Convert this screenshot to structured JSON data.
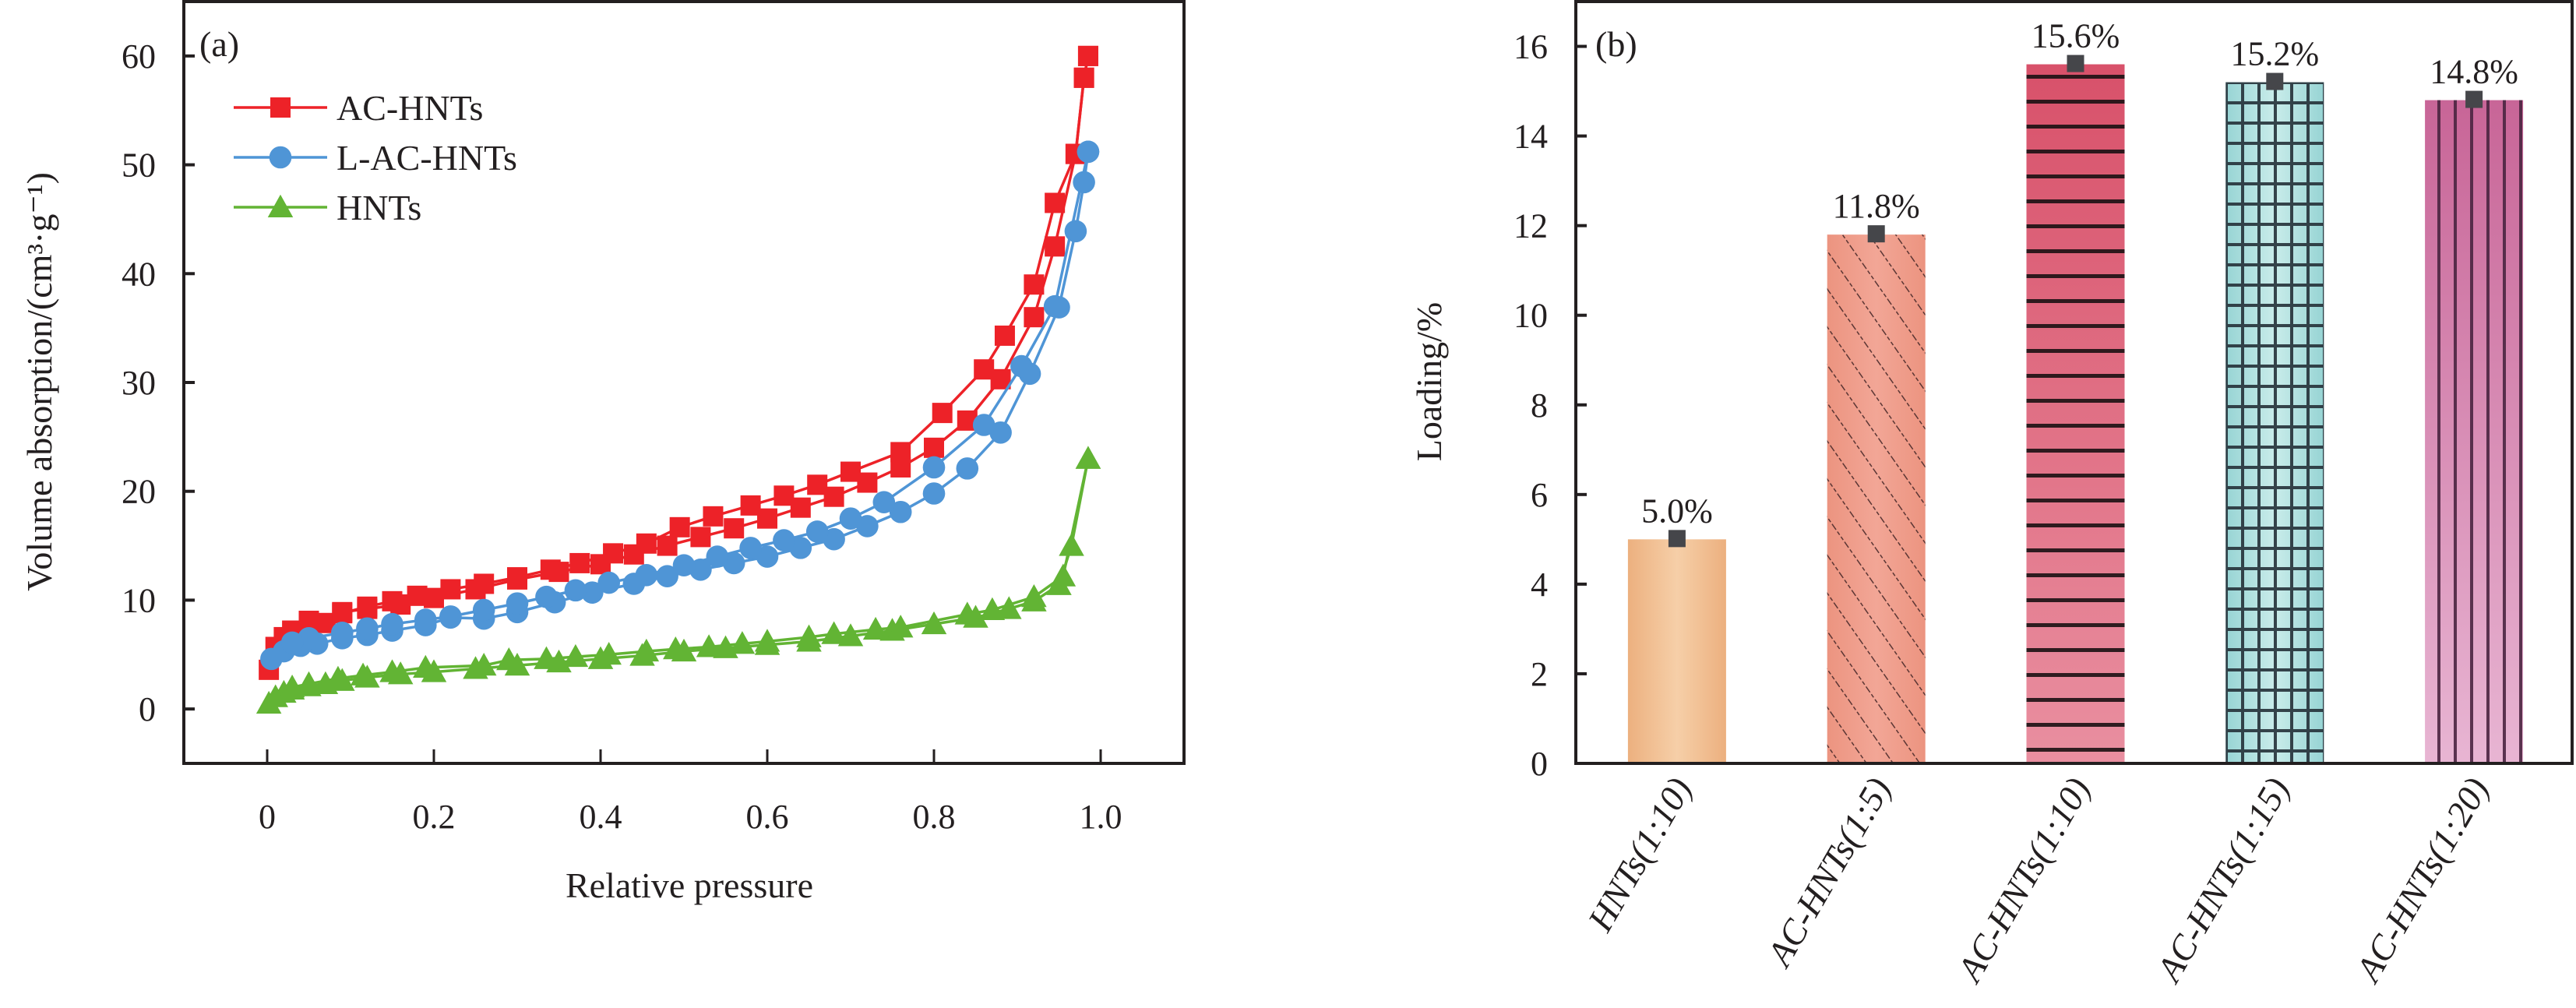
{
  "chart_data": [
    {
      "type": "line",
      "panel_tag": "(a)",
      "title": "",
      "xlabel": "Relative pressure",
      "ylabel": "Volume absorption/(cm³·g⁻¹)",
      "xlim": [
        -0.1,
        1.1
      ],
      "ylim": [
        -5,
        65
      ],
      "xticks": [
        0,
        0.2,
        0.4,
        0.6,
        0.8,
        1.0
      ],
      "xtick_labels": [
        "0",
        "0.2",
        "0.4",
        "0.6",
        "0.8",
        "1.0"
      ],
      "yticks": [
        0,
        10,
        20,
        30,
        40,
        50,
        60
      ],
      "ytick_labels": [
        "0",
        "10",
        "20",
        "30",
        "40",
        "50",
        "60"
      ],
      "grid": false,
      "legend_position": "top-left",
      "series": [
        {
          "name": "AC-HNTs",
          "color": "#ed2228",
          "marker": "square",
          "adsorption": {
            "x": [
              0.002,
              0.01,
              0.02,
              0.03,
              0.05,
              0.07,
              0.09,
              0.12,
              0.16,
              0.2,
              0.25,
              0.3,
              0.35,
              0.4,
              0.44,
              0.48,
              0.52,
              0.56,
              0.6,
              0.64,
              0.68,
              0.72,
              0.76,
              0.8,
              0.84,
              0.88,
              0.92,
              0.945,
              0.97,
              0.98,
              0.985
            ],
            "y": [
              3.6,
              5.7,
              6.6,
              7.2,
              8.0,
              7.9,
              8.9,
              9.2,
              9.6,
              10.2,
              11.0,
              11.9,
              12.6,
              13.3,
              14.2,
              15.0,
              15.8,
              16.6,
              17.5,
              18.5,
              19.5,
              20.8,
              22.2,
              24.0,
              26.5,
              30.3,
              36.0,
              42.5,
              51.0,
              58.0,
              60.0
            ]
          },
          "desorption": {
            "x": [
              0.985,
              0.98,
              0.97,
              0.945,
              0.92,
              0.885,
              0.86,
              0.81,
              0.76,
              0.7,
              0.66,
              0.62,
              0.58,
              0.535,
              0.495,
              0.455,
              0.415,
              0.375,
              0.34,
              0.3,
              0.26,
              0.22,
              0.18,
              0.15,
              0.12,
              0.09,
              0.05
            ],
            "y": [
              60.0,
              58.0,
              51.0,
              46.5,
              39.0,
              34.3,
              31.2,
              27.2,
              23.6,
              21.8,
              20.6,
              19.6,
              18.7,
              17.7,
              16.7,
              15.2,
              14.3,
              13.4,
              12.8,
              12.1,
              11.5,
              11.0,
              10.4,
              9.9,
              9.4,
              8.8,
              8.1
            ]
          }
        },
        {
          "name": "L-AC-HNTs",
          "color": "#4f95d6",
          "marker": "circle",
          "adsorption": {
            "x": [
              0.005,
              0.02,
              0.04,
              0.06,
              0.09,
              0.12,
              0.15,
              0.19,
              0.22,
              0.26,
              0.3,
              0.345,
              0.39,
              0.44,
              0.48,
              0.52,
              0.56,
              0.6,
              0.64,
              0.68,
              0.72,
              0.76,
              0.8,
              0.84,
              0.88,
              0.915,
              0.95,
              0.97,
              0.98,
              0.985
            ],
            "y": [
              4.6,
              5.3,
              5.8,
              6.0,
              6.5,
              6.8,
              7.2,
              7.7,
              8.4,
              8.3,
              8.9,
              9.8,
              10.7,
              11.5,
              12.2,
              12.8,
              13.4,
              14.0,
              14.8,
              15.6,
              16.8,
              18.1,
              19.8,
              22.1,
              25.4,
              30.8,
              36.9,
              43.9,
              48.4,
              51.2
            ]
          },
          "desorption": {
            "x": [
              0.985,
              0.945,
              0.905,
              0.86,
              0.8,
              0.74,
              0.7,
              0.66,
              0.62,
              0.58,
              0.54,
              0.5,
              0.455,
              0.41,
              0.37,
              0.335,
              0.3,
              0.26,
              0.22,
              0.19,
              0.15,
              0.12,
              0.09,
              0.05,
              0.03
            ],
            "y": [
              51.2,
              37.0,
              31.5,
              26.1,
              22.2,
              19.0,
              17.5,
              16.3,
              15.5,
              14.8,
              14.0,
              13.2,
              12.3,
              11.6,
              10.9,
              10.3,
              9.7,
              9.1,
              8.5,
              8.2,
              7.8,
              7.4,
              7.0,
              6.5,
              6.1
            ]
          }
        },
        {
          "name": "HNTs",
          "color": "#62b434",
          "marker": "triangle",
          "adsorption": {
            "x": [
              0.002,
              0.01,
              0.02,
              0.03,
              0.05,
              0.07,
              0.09,
              0.12,
              0.16,
              0.2,
              0.25,
              0.3,
              0.35,
              0.4,
              0.45,
              0.5,
              0.55,
              0.6,
              0.65,
              0.7,
              0.75,
              0.8,
              0.85,
              0.89,
              0.92,
              0.95,
              0.965,
              0.985
            ],
            "y": [
              0.5,
              1.1,
              1.5,
              1.8,
              2.1,
              2.3,
              2.6,
              2.9,
              3.2,
              3.4,
              3.7,
              4.0,
              4.3,
              4.6,
              4.9,
              5.3,
              5.6,
              5.9,
              6.2,
              6.7,
              7.2,
              7.8,
              8.4,
              9.2,
              9.9,
              11.4,
              15.0,
              23.0
            ]
          },
          "desorption": {
            "x": [
              0.985,
              0.955,
              0.92,
              0.87,
              0.84,
              0.76,
              0.73,
              0.68,
              0.65,
              0.6,
              0.57,
              0.53,
              0.49,
              0.455,
              0.41,
              0.37,
              0.335,
              0.29,
              0.26,
              0.19,
              0.15,
              0.115,
              0.085,
              0.05,
              0.03
            ],
            "y": [
              23.0,
              12.2,
              10.3,
              9.1,
              8.7,
              7.5,
              7.3,
              6.9,
              6.6,
              6.2,
              6.0,
              5.7,
              5.5,
              5.3,
              5.0,
              4.8,
              4.6,
              4.5,
              4.0,
              3.8,
              3.4,
              3.1,
              2.8,
              2.3,
              2.0
            ]
          }
        }
      ]
    },
    {
      "type": "bar",
      "panel_tag": "(b)",
      "title": "",
      "xlabel": "",
      "ylabel": "Loading/%",
      "ylim": [
        0,
        17
      ],
      "yticks": [
        0,
        2,
        4,
        6,
        8,
        10,
        12,
        14,
        16
      ],
      "ytick_labels": [
        "0",
        "2",
        "4",
        "6",
        "8",
        "10",
        "12",
        "14",
        "16"
      ],
      "grid": false,
      "categories": [
        "HNTs(1:10)",
        "AC-HNTs(1:5)",
        "AC-HNTs(1:10)",
        "AC-HNTs(1:15)",
        "AC-HNTs(1:20)"
      ],
      "values": [
        5.0,
        11.8,
        15.6,
        15.2,
        14.8
      ],
      "data_labels": [
        "5.0%",
        "11.8%",
        "15.6%",
        "15.2%",
        "14.8%"
      ],
      "bar_styles": [
        {
          "fill_edge": "#ecb07f",
          "fill_center": "#f6cfa8",
          "pattern": "none"
        },
        {
          "fill_edge": "#ec9480",
          "fill_center": "#f2a696",
          "pattern": "diagonal"
        },
        {
          "fill_edge": "#d8516a",
          "fill_center": "#e78c9e",
          "pattern": "horizontal"
        },
        {
          "fill_edge": "#97d4d4",
          "fill_center": "#c9ecea",
          "pattern": "grid"
        },
        {
          "fill_edge": "#c86597",
          "fill_center": "#e8b5d3",
          "pattern": "vertical"
        }
      ],
      "marker_color": "#45464a"
    }
  ]
}
